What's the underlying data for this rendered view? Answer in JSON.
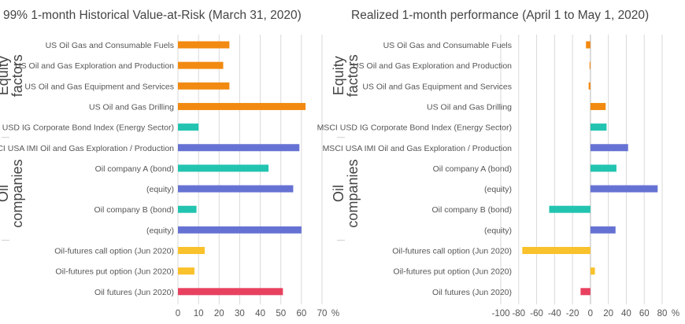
{
  "chart_data": [
    {
      "type": "bar",
      "orientation": "horizontal",
      "title": "99% 1-month Historical Value-at-Risk (March 31, 2020)",
      "unit": "%",
      "xlim": [
        0,
        70
      ],
      "xticks": [
        "0",
        "10",
        "20",
        "30",
        "40",
        "50",
        "60",
        "70"
      ],
      "grid": "vertical",
      "categories": [
        "US Oil Gas and Consumable Fuels",
        "US Oil and Gas Exploration and Production",
        "US Oil and Gas Equipment and Services",
        "US Oil and Gas Drilling",
        "MSCI USD IG Corporate Bond Index (Energy Sector)",
        "MSCI USA IMI Oil and Gas Exploration / Production",
        "Oil company A (bond)",
        "(equity)",
        "Oil company B (bond)",
        "(equity)",
        "Oil-futures call option (Jun 2020)",
        "Oil-futures put option (Jun 2020)",
        "Oil futures (Jun 2020)"
      ],
      "values": [
        25,
        22,
        25,
        62,
        10,
        59,
        44,
        56,
        9,
        60,
        13,
        8,
        51
      ],
      "colors": [
        "#f28a12",
        "#f28a12",
        "#f28a12",
        "#f28a12",
        "#22c4b0",
        "#6672d3",
        "#22c4b0",
        "#6672d3",
        "#22c4b0",
        "#6672d3",
        "#f9c12b",
        "#f9c12b",
        "#e8415f"
      ],
      "groups": [
        {
          "label_line1": "Equity",
          "label_line2": "factors"
        },
        {
          "label_line1": "Oil",
          "label_line2": "companies"
        }
      ]
    },
    {
      "type": "bar",
      "orientation": "horizontal",
      "title": "Realized 1-month performance (April 1 to May 1, 2020)",
      "unit": "%",
      "xlim": [
        -100,
        80
      ],
      "xticks": [
        "-100",
        "-80",
        "-60",
        "-40",
        "-20",
        "0",
        "20",
        "40",
        "60",
        "80"
      ],
      "grid": "vertical",
      "categories": [
        "US Oil Gas and Consumable Fuels",
        "US Oil and Gas Exploration and Production",
        "US Oil and Gas Equipment and Services",
        "US Oil and Gas Drilling",
        "MSCI USD IG Corporate Bond Index (Energy Sector)",
        "MSCI USA IMI Oil and Gas Exploration / Production",
        "Oil company A (bond)",
        "(equity)",
        "Oil company B (bond)",
        "(equity)",
        "Oil-futures call option (Jun 2020)",
        "Oil-futures put option (Jun 2020)",
        "Oil futures (Jun 2020)"
      ],
      "values": [
        -5,
        -1,
        -2,
        17,
        18,
        42,
        29,
        75,
        -46,
        28,
        -76,
        5,
        -11
      ],
      "colors": [
        "#f28a12",
        "#f28a12",
        "#f28a12",
        "#f28a12",
        "#22c4b0",
        "#6672d3",
        "#22c4b0",
        "#6672d3",
        "#22c4b0",
        "#6672d3",
        "#f9c12b",
        "#f9c12b",
        "#e8415f"
      ],
      "groups": [
        {
          "label_line1": "Equity",
          "label_line2": "factors"
        },
        {
          "label_line1": "Oil",
          "label_line2": "companies"
        }
      ]
    }
  ]
}
